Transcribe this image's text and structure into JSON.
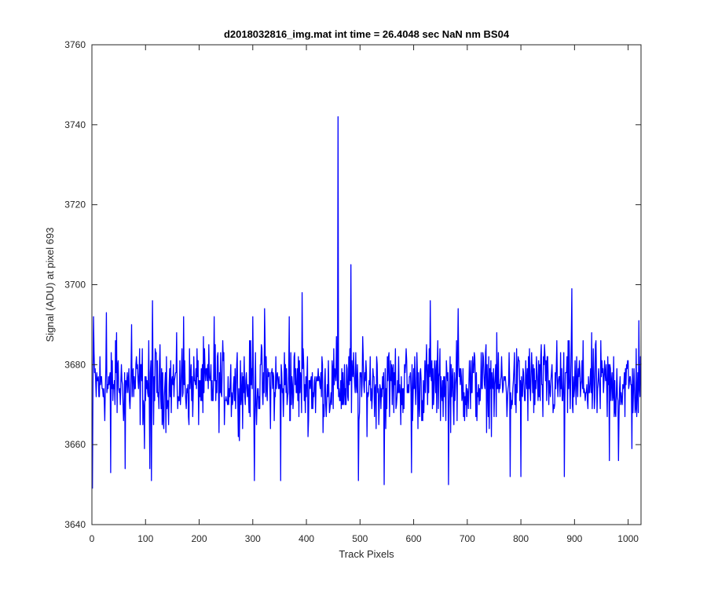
{
  "chart_data": {
    "type": "line",
    "title": "d2018032816_img.mat int time = 26.4048 sec  NaN nm BS04",
    "xlabel": "Track Pixels",
    "ylabel": "Signal (ADU) at pixel 693",
    "xlim": [
      0,
      1024
    ],
    "ylim": [
      3640,
      3760
    ],
    "xticks": [
      0,
      100,
      200,
      300,
      400,
      500,
      600,
      700,
      800,
      900,
      1000
    ],
    "yticks": [
      3640,
      3660,
      3680,
      3700,
      3720,
      3740,
      3760
    ],
    "xtick_labels": [
      "0",
      "100",
      "200",
      "300",
      "400",
      "500",
      "600",
      "700",
      "800",
      "900",
      "1000"
    ],
    "ytick_labels": [
      "3640",
      "3660",
      "3680",
      "3700",
      "3720",
      "3740",
      "3760"
    ],
    "grid": false,
    "series": [
      {
        "color": "#0000ff",
        "x_start": 1,
        "x_step": 1,
        "num_points": 1024,
        "noise_mean": 3675,
        "noise_range": [
          3650,
          3699
        ],
        "spikes": [
          {
            "x": 1,
            "y": 3649
          },
          {
            "x": 3,
            "y": 3692
          },
          {
            "x": 27,
            "y": 3693
          },
          {
            "x": 35,
            "y": 3653
          },
          {
            "x": 46,
            "y": 3688
          },
          {
            "x": 62,
            "y": 3654
          },
          {
            "x": 74,
            "y": 3690
          },
          {
            "x": 98,
            "y": 3659
          },
          {
            "x": 108,
            "y": 3654
          },
          {
            "x": 111,
            "y": 3651
          },
          {
            "x": 113,
            "y": 3696
          },
          {
            "x": 171,
            "y": 3692
          },
          {
            "x": 228,
            "y": 3692
          },
          {
            "x": 300,
            "y": 3692
          },
          {
            "x": 303,
            "y": 3651
          },
          {
            "x": 322,
            "y": 3694
          },
          {
            "x": 352,
            "y": 3651
          },
          {
            "x": 368,
            "y": 3692
          },
          {
            "x": 392,
            "y": 3698
          },
          {
            "x": 459,
            "y": 3742
          },
          {
            "x": 483,
            "y": 3705
          },
          {
            "x": 497,
            "y": 3651
          },
          {
            "x": 545,
            "y": 3650
          },
          {
            "x": 596,
            "y": 3653
          },
          {
            "x": 631,
            "y": 3696
          },
          {
            "x": 665,
            "y": 3650
          },
          {
            "x": 683,
            "y": 3694
          },
          {
            "x": 780,
            "y": 3652
          },
          {
            "x": 800,
            "y": 3652
          },
          {
            "x": 881,
            "y": 3652
          },
          {
            "x": 895,
            "y": 3699
          },
          {
            "x": 965,
            "y": 3656
          },
          {
            "x": 982,
            "y": 3656
          },
          {
            "x": 1007,
            "y": 3659
          },
          {
            "x": 1020,
            "y": 3691
          }
        ]
      }
    ]
  }
}
